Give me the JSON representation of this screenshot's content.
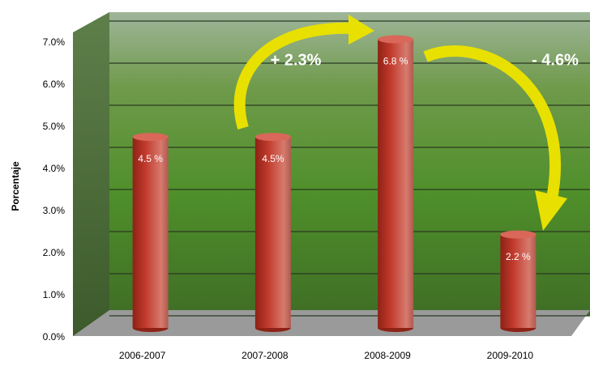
{
  "chart_data": {
    "type": "bar",
    "y_label": "Porcentaje",
    "categories": [
      "2006-2007",
      "2007-2008",
      "2008-2009",
      "2009-2010"
    ],
    "values": [
      4.5,
      4.5,
      6.8,
      2.2
    ],
    "value_labels": [
      "4.5 %",
      "4.5%",
      "6.8 %",
      "2.2 %"
    ],
    "color": "#c0392b",
    "ylim": [
      0,
      7
    ],
    "yticks": [
      {
        "value": 0,
        "label": "0.0%"
      },
      {
        "value": 1,
        "label": "1.0%"
      },
      {
        "value": 2,
        "label": "2.0%"
      },
      {
        "value": 3,
        "label": "3.0%"
      },
      {
        "value": 4,
        "label": "4.0%"
      },
      {
        "value": 5,
        "label": "5.0%"
      },
      {
        "value": 6,
        "label": "6.0%"
      },
      {
        "value": 7,
        "label": "7.0%"
      }
    ],
    "grid": true,
    "annotations": [
      "+ 2.3%",
      "- 4.6%"
    ]
  }
}
